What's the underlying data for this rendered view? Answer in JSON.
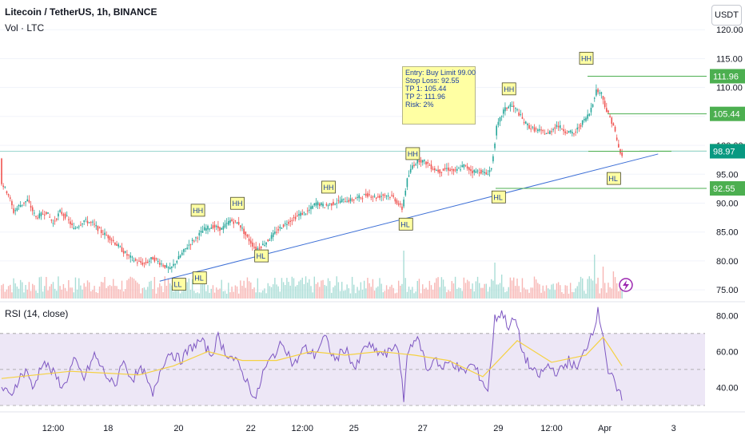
{
  "header": {
    "symbol": "Litecoin / TetherUS, 1h, BINANCE",
    "volume_label": "Vol · LTC",
    "rsi_label": "RSI (14, close)",
    "currency_button": "USDT"
  },
  "trade_note": {
    "entry": "Entry: Buy Limit 99.00",
    "stop": "Stop Loss: 92.55",
    "tp1": "TP 1: 105.44",
    "tp2": "TP 2: 111.96",
    "risk": "Risk: 2%"
  },
  "colors": {
    "up": "#26a69a",
    "down": "#ef5350",
    "trendline": "#3d6fd6",
    "level": "#4caf50",
    "current_price": "#089981",
    "rsi": "#7e57c2",
    "rsi_ma": "#f5d142",
    "rsi_band": "#ede7f6"
  },
  "chart_data": [
    {
      "type": "candlestick",
      "title": "Litecoin / TetherUS, 1h, BINANCE",
      "x_tick_labels": [
        "12:00",
        "18",
        "20",
        "22",
        "12:00",
        "25",
        "27",
        "29",
        "12:00",
        "Apr",
        "3"
      ],
      "y_tick_labels": [
        "120.00",
        "115.00",
        "110.00",
        "105.00",
        "100.00",
        "95.00",
        "90.00",
        "85.00",
        "80.00",
        "75.00"
      ],
      "ylim": [
        73.5,
        121
      ],
      "price_path": [
        [
          0,
          93.5
        ],
        [
          4,
          91.5
        ],
        [
          7,
          88.5
        ],
        [
          10,
          89.5
        ],
        [
          15,
          90.5
        ],
        [
          20,
          87.5
        ],
        [
          26,
          88.5
        ],
        [
          30,
          86.5
        ],
        [
          34,
          88.5
        ],
        [
          38,
          87.5
        ],
        [
          42,
          85.5
        ],
        [
          48,
          87.0
        ],
        [
          53,
          86.5
        ],
        [
          58,
          85.0
        ],
        [
          63,
          84.0
        ],
        [
          68,
          82.5
        ],
        [
          73,
          81.0
        ],
        [
          78,
          80.0
        ],
        [
          83,
          79.5
        ],
        [
          88,
          80.5
        ],
        [
          93,
          79.5
        ],
        [
          98,
          78.5
        ],
        [
          103,
          80.5
        ],
        [
          108,
          82.5
        ],
        [
          113,
          84.0
        ],
        [
          118,
          85.5
        ],
        [
          123,
          86.0
        ],
        [
          128,
          85.5
        ],
        [
          133,
          87.0
        ],
        [
          138,
          86.5
        ],
        [
          143,
          84.0
        ],
        [
          148,
          82.0
        ],
        [
          153,
          83.0
        ],
        [
          158,
          84.5
        ],
        [
          163,
          86.0
        ],
        [
          168,
          87.0
        ],
        [
          173,
          88.0
        ],
        [
          178,
          88.5
        ],
        [
          183,
          90.0
        ],
        [
          188,
          89.5
        ],
        [
          193,
          90.0
        ],
        [
          198,
          90.5
        ],
        [
          203,
          90.5
        ],
        [
          208,
          91.0
        ],
        [
          213,
          91.5
        ],
        [
          218,
          91.0
        ],
        [
          223,
          91.5
        ],
        [
          228,
          91.0
        ],
        [
          233,
          89.0
        ],
        [
          236,
          94.0
        ],
        [
          239,
          96.5
        ],
        [
          243,
          97.5
        ],
        [
          247,
          97.0
        ],
        [
          251,
          96.0
        ],
        [
          255,
          95.5
        ],
        [
          259,
          96.0
        ],
        [
          264,
          95.5
        ],
        [
          269,
          96.5
        ],
        [
          274,
          95.5
        ],
        [
          279,
          95.5
        ],
        [
          282,
          95.0
        ],
        [
          285,
          96.0
        ],
        [
          288,
          103.0
        ],
        [
          292,
          106.0
        ],
        [
          296,
          107.0
        ],
        [
          300,
          106.0
        ],
        [
          304,
          104.0
        ],
        [
          308,
          103.0
        ],
        [
          313,
          102.5
        ],
        [
          318,
          102.0
        ],
        [
          323,
          103.5
        ],
        [
          328,
          102.5
        ],
        [
          333,
          102.0
        ],
        [
          338,
          104.0
        ],
        [
          342,
          105.5
        ],
        [
          346,
          109.5
        ],
        [
          349,
          109.0
        ],
        [
          352,
          106.0
        ],
        [
          356,
          103.5
        ],
        [
          359,
          99.5
        ],
        [
          361,
          98.0
        ]
      ],
      "trendline": {
        "from": [
          92,
          76.5
        ],
        "to": [
          382,
          98.5
        ]
      },
      "levels": [
        {
          "label": "111.96",
          "value": 111.96
        },
        {
          "label": "105.44",
          "value": 105.44
        },
        {
          "label": "99.00",
          "value": 99.0
        },
        {
          "label": "92.55",
          "value": 92.55
        }
      ],
      "current_price": {
        "label": "98.97",
        "value": 98.97
      },
      "annotations": [
        {
          "label": "LL",
          "bar": 103,
          "price": 75.9
        },
        {
          "label": "HL",
          "bar": 115,
          "price": 77.0
        },
        {
          "label": "HH",
          "bar": 114,
          "price": 88.7
        },
        {
          "label": "HH",
          "bar": 137,
          "price": 89.9
        },
        {
          "label": "HL",
          "bar": 151,
          "price": 80.8
        },
        {
          "label": "HH",
          "bar": 190,
          "price": 92.7
        },
        {
          "label": "HL",
          "bar": 235,
          "price": 86.3
        },
        {
          "label": "HH",
          "bar": 239,
          "price": 98.5
        },
        {
          "label": "HL",
          "bar": 289,
          "price": 91.0
        },
        {
          "label": "HH",
          "bar": 295,
          "price": 109.7
        },
        {
          "label": "HH",
          "bar": 340,
          "price": 115.0
        },
        {
          "label": "HL",
          "bar": 356,
          "price": 94.2
        }
      ]
    },
    {
      "type": "bar",
      "title": "Vol · LTC",
      "series": [
        {
          "values": []
        }
      ]
    },
    {
      "type": "line",
      "title": "RSI (14, close)",
      "y_tick_labels": [
        "80.00",
        "60.00",
        "40.00"
      ],
      "ylim": [
        30,
        85
      ],
      "band": [
        30,
        70
      ],
      "midline": 50,
      "rsi_path": [
        [
          0,
          40
        ],
        [
          5,
          35
        ],
        [
          10,
          45
        ],
        [
          15,
          50
        ],
        [
          18,
          38
        ],
        [
          24,
          55
        ],
        [
          30,
          48
        ],
        [
          36,
          40
        ],
        [
          42,
          55
        ],
        [
          48,
          45
        ],
        [
          54,
          58
        ],
        [
          60,
          48
        ],
        [
          66,
          40
        ],
        [
          70,
          55
        ],
        [
          76,
          45
        ],
        [
          82,
          50
        ],
        [
          88,
          35
        ],
        [
          93,
          52
        ],
        [
          98,
          60
        ],
        [
          104,
          55
        ],
        [
          110,
          62
        ],
        [
          116,
          66
        ],
        [
          122,
          58
        ],
        [
          126,
          68
        ],
        [
          130,
          60
        ],
        [
          136,
          55
        ],
        [
          142,
          45
        ],
        [
          148,
          33
        ],
        [
          152,
          48
        ],
        [
          158,
          58
        ],
        [
          164,
          65
        ],
        [
          170,
          52
        ],
        [
          176,
          62
        ],
        [
          182,
          58
        ],
        [
          188,
          68
        ],
        [
          194,
          55
        ],
        [
          200,
          62
        ],
        [
          206,
          50
        ],
        [
          212,
          64
        ],
        [
          218,
          60
        ],
        [
          224,
          58
        ],
        [
          230,
          65
        ],
        [
          234,
          34
        ],
        [
          236,
          58
        ],
        [
          240,
          68
        ],
        [
          244,
          63
        ],
        [
          248,
          48
        ],
        [
          252,
          58
        ],
        [
          256,
          50
        ],
        [
          262,
          55
        ],
        [
          268,
          48
        ],
        [
          274,
          53
        ],
        [
          279,
          45
        ],
        [
          283,
          38
        ],
        [
          287,
          78
        ],
        [
          291,
          82
        ],
        [
          295,
          74
        ],
        [
          299,
          78
        ],
        [
          303,
          60
        ],
        [
          307,
          52
        ],
        [
          312,
          46
        ],
        [
          318,
          52
        ],
        [
          324,
          48
        ],
        [
          330,
          55
        ],
        [
          335,
          50
        ],
        [
          340,
          62
        ],
        [
          344,
          72
        ],
        [
          347,
          82
        ],
        [
          350,
          70
        ],
        [
          353,
          48
        ],
        [
          356,
          44
        ],
        [
          359,
          36
        ],
        [
          361,
          35
        ]
      ],
      "ma_path": [
        [
          0,
          45
        ],
        [
          20,
          47
        ],
        [
          40,
          49
        ],
        [
          60,
          48
        ],
        [
          80,
          47
        ],
        [
          100,
          52
        ],
        [
          120,
          60
        ],
        [
          140,
          55
        ],
        [
          160,
          55
        ],
        [
          180,
          60
        ],
        [
          200,
          58
        ],
        [
          220,
          60
        ],
        [
          240,
          58
        ],
        [
          260,
          55
        ],
        [
          280,
          46
        ],
        [
          300,
          66
        ],
        [
          320,
          54
        ],
        [
          340,
          58
        ],
        [
          350,
          68
        ],
        [
          361,
          52
        ]
      ]
    }
  ]
}
